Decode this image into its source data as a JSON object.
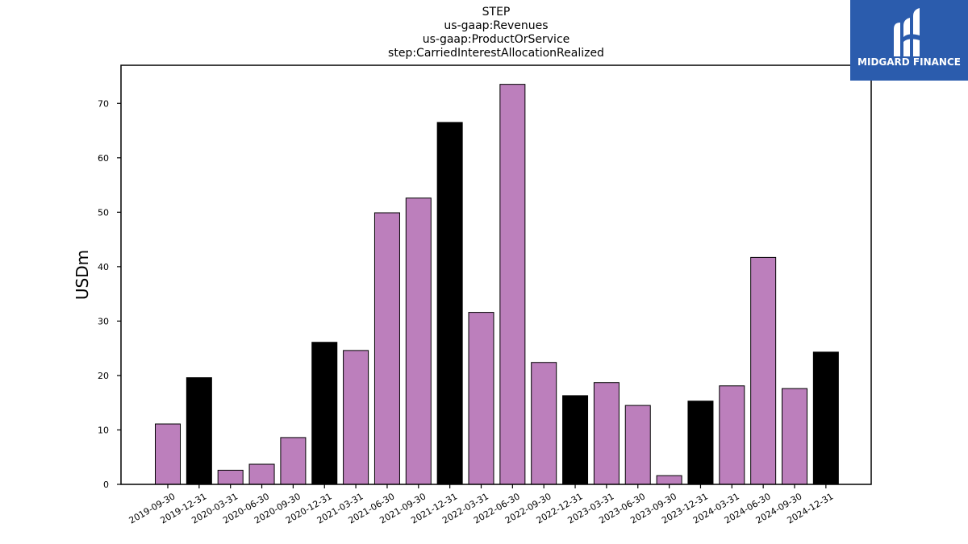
{
  "title_lines": [
    "STEP",
    "us-gaap:Revenues",
    "us-gaap:ProductOrService",
    "step:CarriedInterestAllocationRealized"
  ],
  "logo": {
    "text": "MIDGARD FINANCE",
    "icon": "midgard-logo-icon",
    "background": "#2b5cad"
  },
  "chart_data": {
    "type": "bar",
    "title": "STEP\nus-gaap:Revenues\nus-gaap:ProductOrService\nstep:CarriedInterestAllocationRealized",
    "xlabel": "",
    "ylabel": "USDm",
    "ylim": [
      0,
      77
    ],
    "yticks": [
      0,
      10,
      20,
      30,
      40,
      50,
      60,
      70
    ],
    "grid": false,
    "colors": {
      "quarter": "#bc7fbc",
      "year_end": "#000000",
      "edge": "#000000"
    },
    "categories": [
      "2019-09-30",
      "2019-12-31",
      "2020-03-31",
      "2020-06-30",
      "2020-09-30",
      "2020-12-31",
      "2021-03-31",
      "2021-06-30",
      "2021-09-30",
      "2021-12-31",
      "2022-03-31",
      "2022-06-30",
      "2022-09-30",
      "2022-12-31",
      "2023-03-31",
      "2023-06-30",
      "2023-09-30",
      "2023-12-31",
      "2024-03-31",
      "2024-06-30",
      "2024-09-30",
      "2024-12-31"
    ],
    "values": [
      11.1,
      19.6,
      2.6,
      3.7,
      8.6,
      26.1,
      24.6,
      49.9,
      52.6,
      66.5,
      31.6,
      73.5,
      22.4,
      16.3,
      18.7,
      14.5,
      1.6,
      15.3,
      18.1,
      41.7,
      17.6,
      24.3
    ]
  }
}
